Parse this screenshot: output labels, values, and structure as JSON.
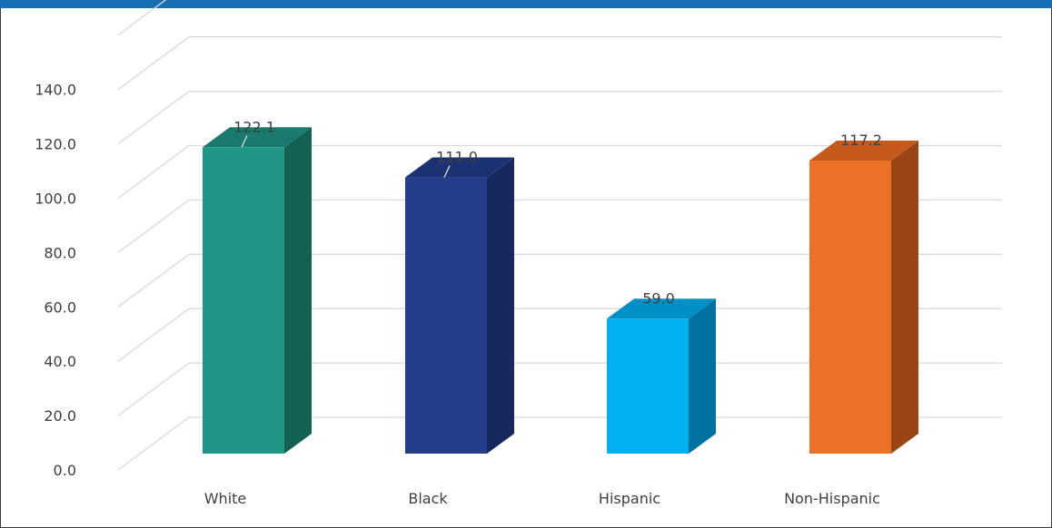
{
  "chart_data": {
    "type": "bar",
    "style": "3d-column",
    "categories": [
      "White",
      "Black",
      "Hispanic",
      "Non-Hispanic"
    ],
    "values": [
      122.1,
      111.0,
      59.0,
      117.2
    ],
    "data_labels": [
      "122.1",
      "111.0",
      "59.0",
      "117.2"
    ],
    "yticks": [
      "0.0",
      "20.0",
      "40.0",
      "60.0",
      "80.0",
      "100.0",
      "120.0",
      "140.0"
    ],
    "ylim": [
      0,
      140
    ],
    "title": "",
    "xlabel": "",
    "ylabel": "",
    "grid": true,
    "legend": "none",
    "colors": {
      "bars": [
        {
          "front": "#1f9787",
          "side": "#136152",
          "top": "#197a6d"
        },
        {
          "front": "#243e8c",
          "side": "#17285e",
          "top": "#1d3273"
        },
        {
          "front": "#00b0f0",
          "side": "#0072a0",
          "top": "#0090c8"
        },
        {
          "front": "#ed7125",
          "side": "#9a4614",
          "top": "#c45a1c"
        }
      ],
      "frame_top": "#1a6fb4",
      "frame_border": "#3d3d3d",
      "grid": "#d9d9d9",
      "text": "#404040"
    }
  }
}
